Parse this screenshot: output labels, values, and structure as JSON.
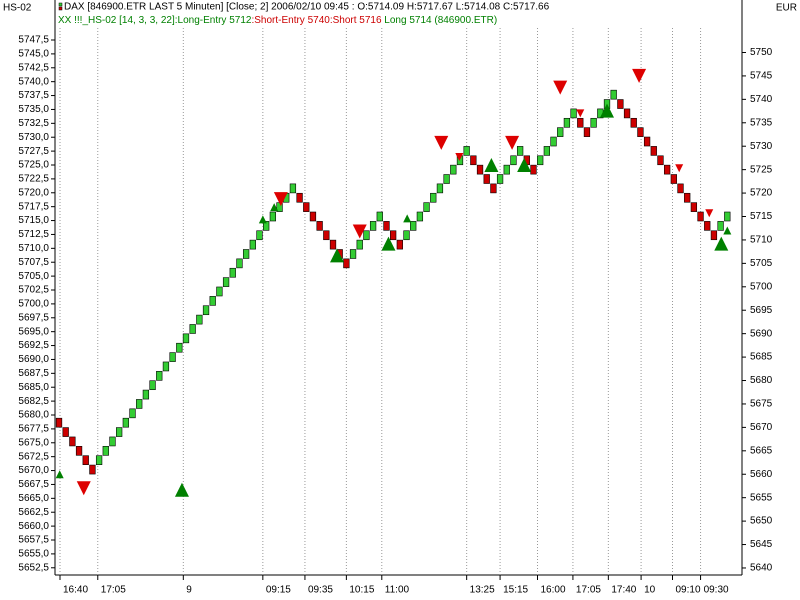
{
  "chart_data": {
    "type": "renko",
    "corner_left": "HS-02",
    "corner_right": "EUR",
    "header": "DAX [846900.ETR LAST 5 Minuten] [Close; 2] 2006/02/10 09:45 : O:5714.09 H:5717.67 L:5714.08 C:5717.66",
    "indicator_parts": [
      {
        "text": "XX !!!_HS-02 [14, 3, 3, 22]:Long-Entry 5712",
        "color": "#008000"
      },
      {
        "text": ":Short-Entry 5740:Short 5716",
        "color": "#cc0000"
      },
      {
        "text": " Long 5714 (846900.ETR)",
        "color": "#008000"
      }
    ],
    "up_color": "#33cc33",
    "down_color": "#cc0000",
    "values": [
      5671,
      5669,
      5667,
      5665,
      5663,
      5661,
      5663,
      5665,
      5667,
      5669,
      5671,
      5673,
      5675,
      5677,
      5679,
      5681,
      5683,
      5685,
      5687,
      5689,
      5691,
      5693,
      5695,
      5697,
      5699,
      5701,
      5703,
      5705,
      5707,
      5709,
      5711,
      5713,
      5715,
      5717,
      5719,
      5721,
      5719,
      5717,
      5715,
      5713,
      5711,
      5709,
      5707,
      5705,
      5707,
      5709,
      5711,
      5713,
      5715,
      5713,
      5711,
      5709,
      5711,
      5713,
      5715,
      5717,
      5719,
      5721,
      5723,
      5725,
      5727,
      5729,
      5727,
      5725,
      5723,
      5721,
      5723,
      5725,
      5727,
      5729,
      5727,
      5725,
      5727,
      5729,
      5731,
      5733,
      5735,
      5737,
      5735,
      5733,
      5735,
      5737,
      5739,
      5741,
      5739,
      5737,
      5735,
      5733,
      5731,
      5729,
      5727,
      5725,
      5723,
      5721,
      5719,
      5717,
      5715,
      5713,
      5711,
      5713,
      5715
    ],
    "markers": [
      {
        "kind": "short",
        "large": true,
        "color": "#dd0000",
        "x": [
          3.7,
          33.2,
          45,
          57.2,
          67.8,
          75,
          86.8
        ],
        "values": [
          5657,
          5718.7,
          5711.8,
          5730.7,
          5730.7,
          5742.5,
          5745
        ]
      },
      {
        "kind": "short",
        "large": false,
        "color": "#dd0000",
        "x": [
          59.9,
          78,
          92.8,
          97.3
        ],
        "values": [
          5727.7,
          5737,
          5725.3,
          5715.7
        ]
      },
      {
        "kind": "long",
        "large": true,
        "color": "#008000",
        "x": [
          18.4,
          41.6,
          49.3,
          64.7,
          69.6,
          82,
          99.1
        ],
        "values": [
          5656.7,
          5706.7,
          5709.2,
          5726,
          5726,
          5737.6,
          5709.2
        ]
      },
      {
        "kind": "long",
        "large": false,
        "color": "#008000",
        "x": [
          0.1,
          30.5,
          32.2,
          52.1,
          100
        ],
        "values": [
          5660,
          5714.4,
          5717,
          5714.6,
          5712
        ]
      }
    ],
    "xlim": [
      -0.6,
      102.2
    ],
    "xticks": [
      {
        "value": 0.15,
        "label": "16:40"
      },
      {
        "value": 5.8,
        "label": "17:05"
      },
      {
        "value": 18.6,
        "label": "9"
      },
      {
        "value": 30.5,
        "label": "09:15"
      },
      {
        "value": 36.8,
        "label": "09:35"
      },
      {
        "value": 43,
        "label": "10:15"
      },
      {
        "value": 48.3,
        "label": "11:00"
      },
      {
        "value": 61,
        "label": "13:25"
      },
      {
        "value": 66,
        "label": "15:15"
      },
      {
        "value": 71.6,
        "label": "16:00"
      },
      {
        "value": 76.9,
        "label": "17:05"
      },
      {
        "value": 82.2,
        "label": "17:40"
      },
      {
        "value": 87.1,
        "label": "10"
      },
      {
        "value": 91.8,
        "label": "09:10"
      },
      {
        "value": 96,
        "label": "09:30"
      }
    ],
    "ylim": [
      5651.2,
      5754.7
    ],
    "yticks": [
      {
        "value": 5747.5,
        "label": "5747,5"
      },
      {
        "value": 5745,
        "label": "5745,0"
      },
      {
        "value": 5742.5,
        "label": "5742,5"
      },
      {
        "value": 5740,
        "label": "5740,0"
      },
      {
        "value": 5737.5,
        "label": "5737,5"
      },
      {
        "value": 5735,
        "label": "5735,0"
      },
      {
        "value": 5732.5,
        "label": "5732,5"
      },
      {
        "value": 5730,
        "label": "5730,0"
      },
      {
        "value": 5727.5,
        "label": "5727,5"
      },
      {
        "value": 5725,
        "label": "5725,0"
      },
      {
        "value": 5722.5,
        "label": "5722,5"
      },
      {
        "value": 5720,
        "label": "5720,0"
      },
      {
        "value": 5717.5,
        "label": "5717,5"
      },
      {
        "value": 5715,
        "label": "5715,0"
      },
      {
        "value": 5712.5,
        "label": "5712,5"
      },
      {
        "value": 5710,
        "label": "5710,0"
      },
      {
        "value": 5707.5,
        "label": "5707,5"
      },
      {
        "value": 5705,
        "label": "5705,0"
      },
      {
        "value": 5702.5,
        "label": "5702,5"
      },
      {
        "value": 5700,
        "label": "5700,0"
      },
      {
        "value": 5697.5,
        "label": "5697,5"
      },
      {
        "value": 5695,
        "label": "5695,0"
      },
      {
        "value": 5692.5,
        "label": "5692,5"
      },
      {
        "value": 5690,
        "label": "5690,0"
      },
      {
        "value": 5687.5,
        "label": "5687,5"
      },
      {
        "value": 5685,
        "label": "5685,0"
      },
      {
        "value": 5682.5,
        "label": "5682,5"
      },
      {
        "value": 5680,
        "label": "5680,0"
      },
      {
        "value": 5677.5,
        "label": "5677,5"
      },
      {
        "value": 5675,
        "label": "5675,0"
      },
      {
        "value": 5672.5,
        "label": "5672,5"
      },
      {
        "value": 5670,
        "label": "5670,0"
      },
      {
        "value": 5667.5,
        "label": "5667,5"
      },
      {
        "value": 5665,
        "label": "5665,0"
      },
      {
        "value": 5662.5,
        "label": "5662,5"
      },
      {
        "value": 5660,
        "label": "5660,0"
      },
      {
        "value": 5657.5,
        "label": "5657,5"
      },
      {
        "value": 5655,
        "label": "5655,0"
      },
      {
        "value": 5652.5,
        "label": "5652,5"
      }
    ],
    "y2lim": [
      5638.5,
      5761.2
    ],
    "y2ticks": [
      5750,
      5745,
      5740,
      5735,
      5730,
      5725,
      5720,
      5715,
      5710,
      5705,
      5700,
      5695,
      5690,
      5685,
      5680,
      5675,
      5670,
      5665,
      5660,
      5655,
      5650,
      5645,
      5640
    ],
    "grid": true
  }
}
